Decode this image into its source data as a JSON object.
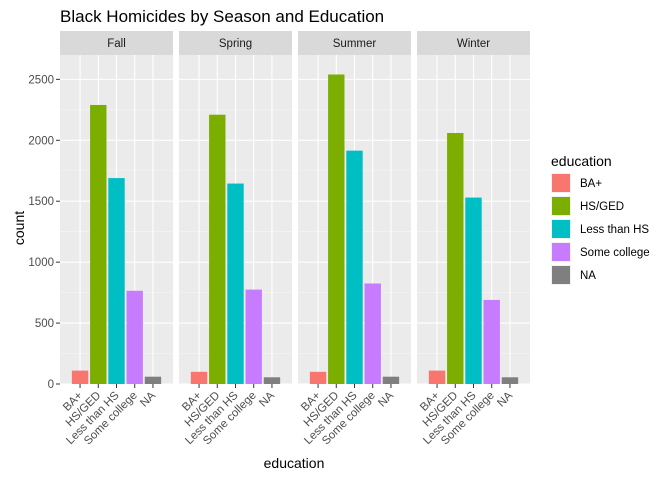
{
  "chart_data": {
    "type": "bar",
    "title": "Black Homicides by Season and Education",
    "xlabel": "education",
    "ylabel": "count",
    "ylim": [
      0,
      2700
    ],
    "yticks": [
      0,
      500,
      1000,
      1500,
      2000,
      2500
    ],
    "grid": true,
    "legend_title": "education",
    "legend_position": "right",
    "categories": [
      "BA+",
      "HS/GED",
      "Less than HS",
      "Some college",
      "NA"
    ],
    "colors": [
      "#F8766D",
      "#7CAE00",
      "#00BFC4",
      "#C77CFF",
      "#7F7F7F"
    ],
    "facets": [
      {
        "name": "Fall",
        "values": [
          110,
          2290,
          1690,
          765,
          60
        ]
      },
      {
        "name": "Spring",
        "values": [
          100,
          2210,
          1645,
          775,
          55
        ]
      },
      {
        "name": "Summer",
        "values": [
          100,
          2540,
          1915,
          825,
          60
        ]
      },
      {
        "name": "Winter",
        "values": [
          110,
          2060,
          1530,
          690,
          55
        ]
      }
    ]
  }
}
